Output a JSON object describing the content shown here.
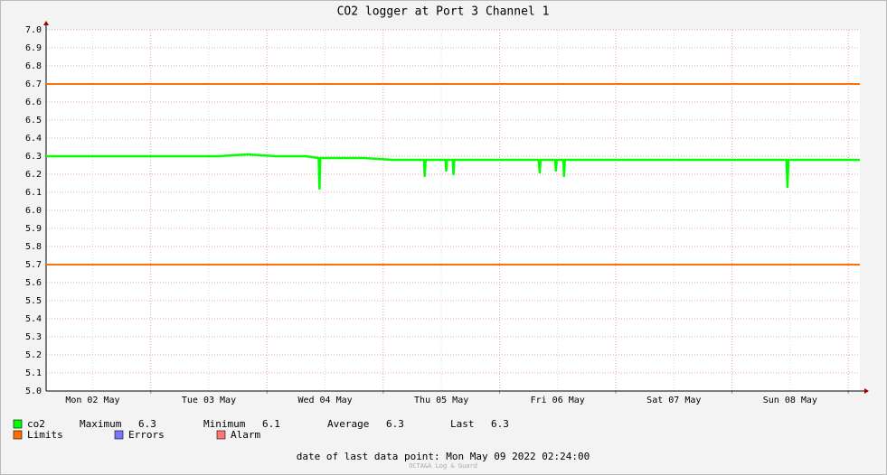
{
  "chart_data": {
    "type": "line",
    "title": "CO2 logger at Port 3 Channel 1",
    "xlim": [
      "2022-05-02T02:24",
      "2022-05-09T02:24"
    ],
    "xticks": [
      {
        "value": "2022-05-02T12:00",
        "label": "Mon 02 May"
      },
      {
        "value": "2022-05-03T12:00",
        "label": "Tue 03 May"
      },
      {
        "value": "2022-05-04T12:00",
        "label": "Wed 04 May"
      },
      {
        "value": "2022-05-05T12:00",
        "label": "Thu 05 May"
      },
      {
        "value": "2022-05-06T12:00",
        "label": "Fri 06 May"
      },
      {
        "value": "2022-05-07T12:00",
        "label": "Sat 07 May"
      },
      {
        "value": "2022-05-08T12:00",
        "label": "Sun 08 May"
      }
    ],
    "xgrid": [
      "2022-05-03T00:00",
      "2022-05-04T00:00",
      "2022-05-05T00:00",
      "2022-05-06T00:00",
      "2022-05-07T00:00",
      "2022-05-08T00:00",
      "2022-05-09T00:00"
    ],
    "ylim": [
      5.0,
      7.0
    ],
    "yticks": [
      {
        "value": 5.0,
        "label": "5.0"
      },
      5.1,
      5.2,
      5.3,
      5.4,
      5.5,
      5.6,
      5.7,
      5.8,
      5.9,
      {
        "value": 6.0,
        "label": "6.0"
      },
      6.1,
      6.2,
      6.3,
      6.4,
      6.5,
      6.6,
      6.7,
      6.8,
      6.9,
      {
        "value": 7.0,
        "label": "7.0"
      }
    ],
    "grid": true,
    "x": [
      "2022-05-02T02:24",
      "2022-05-02T08:00",
      "2022-05-02T14:00",
      "2022-05-02T20:00",
      "2022-05-03T02:00",
      "2022-05-03T08:00",
      "2022-05-03T14:00",
      "2022-05-03T20:00",
      "2022-05-04T02:00",
      "2022-05-04T08:00",
      "2022-05-04T10:40",
      "2022-05-04T10:50",
      "2022-05-04T11:00",
      "2022-05-04T14:00",
      "2022-05-04T20:00",
      "2022-05-05T02:00",
      "2022-05-05T08:00",
      "2022-05-05T08:25",
      "2022-05-05T08:33",
      "2022-05-05T08:45",
      "2022-05-05T12:50",
      "2022-05-05T13:00",
      "2022-05-05T13:10",
      "2022-05-05T14:20",
      "2022-05-05T14:30",
      "2022-05-05T14:40",
      "2022-05-05T20:00",
      "2022-05-06T02:00",
      "2022-05-06T08:05",
      "2022-05-06T08:18",
      "2022-05-06T08:30",
      "2022-05-06T11:30",
      "2022-05-06T11:38",
      "2022-05-06T11:50",
      "2022-05-06T13:10",
      "2022-05-06T13:19",
      "2022-05-06T13:30",
      "2022-05-06T20:00",
      "2022-05-07T02:00",
      "2022-05-07T08:00",
      "2022-05-07T14:00",
      "2022-05-07T20:00",
      "2022-05-08T02:00",
      "2022-05-08T08:00",
      "2022-05-08T11:15",
      "2022-05-08T11:27",
      "2022-05-08T11:40",
      "2022-05-08T14:00",
      "2022-05-08T20:00",
      "2022-05-09T02:24"
    ],
    "series": [
      {
        "name": "co2",
        "color": "#00ff00",
        "values": [
          6.3,
          6.3,
          6.3,
          6.3,
          6.3,
          6.3,
          6.3,
          6.31,
          6.3,
          6.3,
          6.29,
          6.12,
          6.29,
          6.29,
          6.29,
          6.28,
          6.28,
          6.28,
          6.19,
          6.28,
          6.28,
          6.22,
          6.28,
          6.28,
          6.2,
          6.28,
          6.28,
          6.28,
          6.28,
          6.21,
          6.28,
          6.28,
          6.22,
          6.28,
          6.28,
          6.19,
          6.28,
          6.28,
          6.28,
          6.28,
          6.28,
          6.28,
          6.28,
          6.28,
          6.28,
          6.13,
          6.28,
          6.28,
          6.28,
          6.28
        ]
      }
    ],
    "stats": [
      {
        "label": "Maximum",
        "value": 6.3
      },
      {
        "label": "Minimum",
        "value": 6.1
      },
      {
        "label": "Average",
        "value": 6.3
      },
      {
        "label": "Last",
        "value": 6.3
      }
    ],
    "limits": {
      "name": "Limits",
      "color": "#ff7000",
      "values": [
        6.7,
        5.7
      ]
    },
    "extra_legend": [
      {
        "name": "Errors",
        "color": "#7777ff"
      },
      {
        "name": "Alarm",
        "color": "#ff7777"
      }
    ],
    "footer": "date of last data point:  Mon May 09 2022 02:24:00",
    "credit": "OCTA&A Log & Guard"
  }
}
